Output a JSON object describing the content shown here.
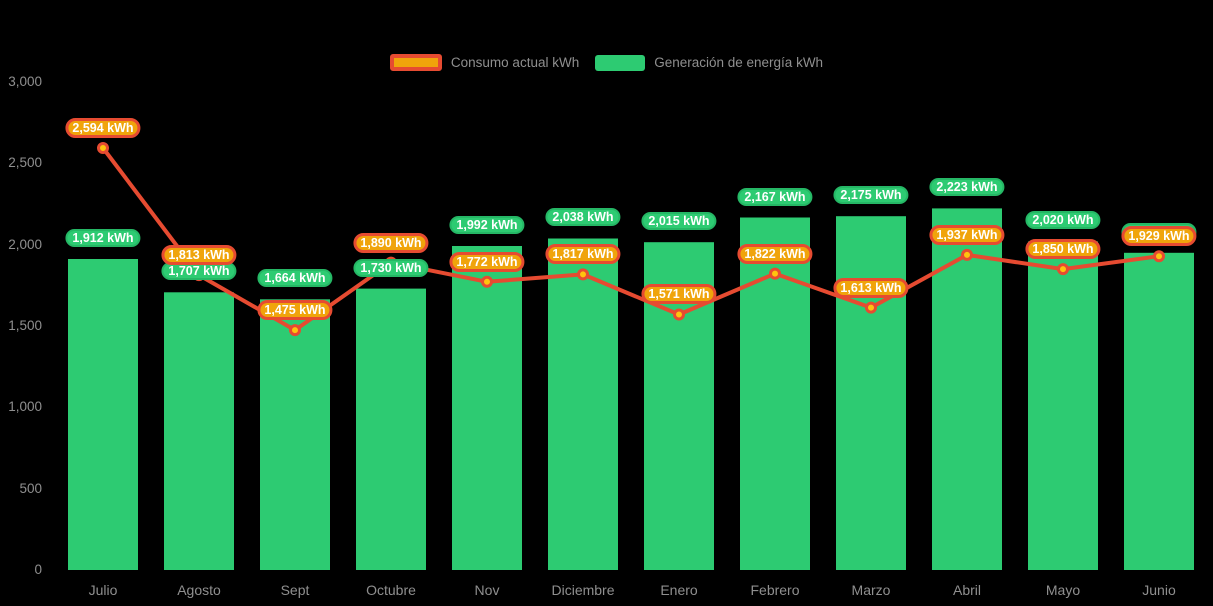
{
  "legend": {
    "items": [
      {
        "id": "consumo",
        "label": "Consumo actual kWh"
      },
      {
        "id": "generacion",
        "label": "Generación de energía kWh"
      }
    ]
  },
  "colors": {
    "background": "#000000",
    "bar_green": "#2DCB72",
    "line_red": "#E64B31",
    "label_amber": "#F0A40B",
    "marker_yellow": "#FFC30E",
    "axis_text": "#8F8F8F",
    "pill_text": "#FFFFFF"
  },
  "unit": "kWh",
  "chart_data": {
    "type": "bar",
    "combo": "bar + line overlay with value labels",
    "categories": [
      "Julio",
      "Agosto",
      "Sept",
      "Octubre",
      "Nov",
      "Diciembre",
      "Enero",
      "Febrero",
      "Marzo",
      "Abril",
      "Mayo",
      "Junio"
    ],
    "series": [
      {
        "name": "Generación de energía kWh",
        "type": "bar",
        "color": "#2DCB72",
        "values": [
          1912,
          1707,
          1664,
          1730,
          1992,
          2038,
          2015,
          2167,
          2175,
          2223,
          2020,
          1950
        ],
        "value_labels": [
          "1,912 kWh",
          "1,707 kWh",
          "1,664 kWh",
          "1,730 kWh",
          "1,992 kWh",
          "2,038 kWh",
          "2,015 kWh",
          "2,167 kWh",
          "2,175 kWh",
          "2,223 kWh",
          "2,020 kWh",
          null
        ],
        "note": "Junio bar label is hidden behind the consumption label; its value (~1,950) is estimated from bar height"
      },
      {
        "name": "Consumo actual kWh",
        "type": "line",
        "color": "#E64B31",
        "marker_fill": "#FFC30E",
        "values": [
          2594,
          1813,
          1475,
          1890,
          1772,
          1817,
          1571,
          1822,
          1613,
          1937,
          1850,
          1929
        ],
        "value_labels": [
          "2,594 kWh",
          "1,813 kWh",
          "1,475 kWh",
          "1,890 kWh",
          "1,772 kWh",
          "1,817 kWh",
          "1,571 kWh",
          "1,822 kWh",
          "1,613 kWh",
          "1,937 kWh",
          "1,850 kWh",
          "1,929 kWh"
        ]
      }
    ],
    "y_axis": {
      "ticks": [
        "0",
        "500",
        "1,000",
        "1,500",
        "2,000",
        "2,500",
        "3,000"
      ],
      "tick_values": [
        0,
        500,
        1000,
        1500,
        2000,
        2500,
        3000
      ],
      "min": 0,
      "max": 3000
    },
    "grid": false,
    "legend_position": "top-center",
    "background": "transparent-black"
  }
}
